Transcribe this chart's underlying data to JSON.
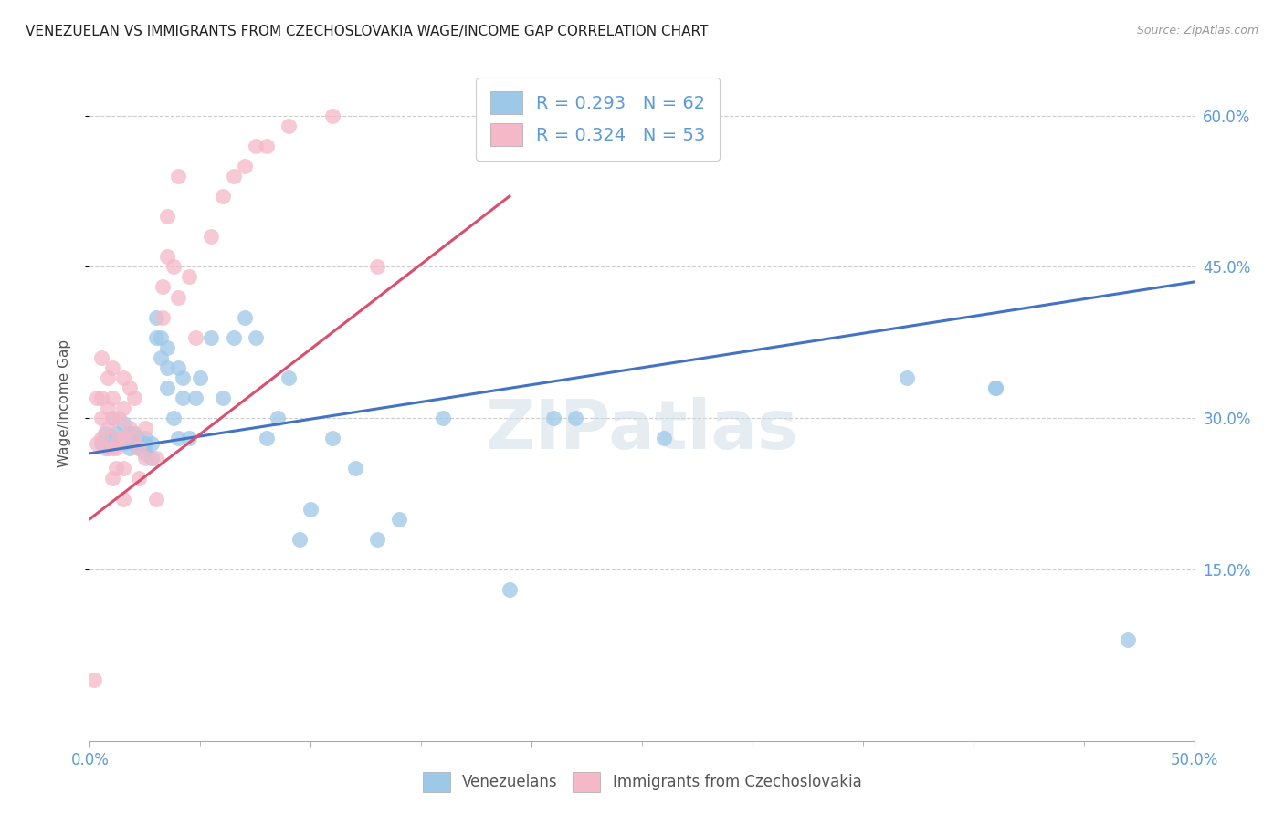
{
  "title": "VENEZUELAN VS IMMIGRANTS FROM CZECHOSLOVAKIA WAGE/INCOME GAP CORRELATION CHART",
  "source": "Source: ZipAtlas.com",
  "ylabel": "Wage/Income Gap",
  "xmin": 0.0,
  "xmax": 0.5,
  "ymin": -0.02,
  "ymax": 0.65,
  "xtick_positions": [
    0.0,
    0.1,
    0.2,
    0.3,
    0.4,
    0.5
  ],
  "xtick_labels": [
    "0.0%",
    "",
    "",
    "",
    "",
    "50.0%"
  ],
  "xtick_minor": [
    0.05,
    0.1,
    0.15,
    0.2,
    0.25,
    0.3,
    0.35,
    0.4,
    0.45
  ],
  "yticks_right": [
    0.15,
    0.3,
    0.45,
    0.6
  ],
  "ytick_labels_right": [
    "15.0%",
    "30.0%",
    "45.0%",
    "60.0%"
  ],
  "blue_color": "#9ec8e8",
  "pink_color": "#f4b8c8",
  "line_blue": "#4472c4",
  "line_pink": "#d94f6e",
  "watermark": "ZIPatlas",
  "blue_scatter_x": [
    0.005,
    0.007,
    0.008,
    0.01,
    0.01,
    0.012,
    0.013,
    0.015,
    0.015,
    0.015,
    0.018,
    0.018,
    0.02,
    0.02,
    0.02,
    0.022,
    0.022,
    0.022,
    0.025,
    0.025,
    0.025,
    0.025,
    0.028,
    0.028,
    0.03,
    0.03,
    0.032,
    0.032,
    0.035,
    0.035,
    0.035,
    0.038,
    0.04,
    0.04,
    0.042,
    0.042,
    0.045,
    0.048,
    0.05,
    0.055,
    0.06,
    0.065,
    0.07,
    0.075,
    0.08,
    0.085,
    0.09,
    0.095,
    0.1,
    0.11,
    0.12,
    0.13,
    0.14,
    0.16,
    0.19,
    0.21,
    0.22,
    0.26,
    0.37,
    0.41,
    0.41,
    0.47
  ],
  "blue_scatter_y": [
    0.275,
    0.285,
    0.27,
    0.28,
    0.3,
    0.285,
    0.275,
    0.275,
    0.28,
    0.295,
    0.285,
    0.27,
    0.275,
    0.28,
    0.285,
    0.27,
    0.275,
    0.28,
    0.265,
    0.27,
    0.275,
    0.28,
    0.26,
    0.275,
    0.38,
    0.4,
    0.36,
    0.38,
    0.33,
    0.35,
    0.37,
    0.3,
    0.28,
    0.35,
    0.32,
    0.34,
    0.28,
    0.32,
    0.34,
    0.38,
    0.32,
    0.38,
    0.4,
    0.38,
    0.28,
    0.3,
    0.34,
    0.18,
    0.21,
    0.28,
    0.25,
    0.18,
    0.2,
    0.3,
    0.13,
    0.3,
    0.3,
    0.28,
    0.34,
    0.33,
    0.33,
    0.08
  ],
  "pink_scatter_x": [
    0.002,
    0.003,
    0.003,
    0.005,
    0.005,
    0.005,
    0.005,
    0.007,
    0.008,
    0.008,
    0.008,
    0.01,
    0.01,
    0.01,
    0.01,
    0.01,
    0.012,
    0.012,
    0.013,
    0.013,
    0.015,
    0.015,
    0.015,
    0.015,
    0.015,
    0.018,
    0.018,
    0.02,
    0.02,
    0.022,
    0.022,
    0.025,
    0.025,
    0.03,
    0.03,
    0.033,
    0.033,
    0.035,
    0.035,
    0.038,
    0.04,
    0.04,
    0.045,
    0.048,
    0.055,
    0.06,
    0.065,
    0.07,
    0.075,
    0.08,
    0.09,
    0.11,
    0.13
  ],
  "pink_scatter_y": [
    0.04,
    0.275,
    0.32,
    0.28,
    0.3,
    0.32,
    0.36,
    0.27,
    0.29,
    0.31,
    0.34,
    0.24,
    0.27,
    0.3,
    0.32,
    0.35,
    0.25,
    0.27,
    0.28,
    0.3,
    0.22,
    0.25,
    0.28,
    0.31,
    0.34,
    0.29,
    0.33,
    0.28,
    0.32,
    0.24,
    0.27,
    0.26,
    0.29,
    0.22,
    0.26,
    0.4,
    0.43,
    0.46,
    0.5,
    0.45,
    0.42,
    0.54,
    0.44,
    0.38,
    0.48,
    0.52,
    0.54,
    0.55,
    0.57,
    0.57,
    0.59,
    0.6,
    0.45
  ],
  "blue_line_x": [
    0.0,
    0.5
  ],
  "blue_line_y": [
    0.265,
    0.435
  ],
  "pink_line_x": [
    0.0,
    0.19
  ],
  "pink_line_y": [
    0.2,
    0.52
  ]
}
